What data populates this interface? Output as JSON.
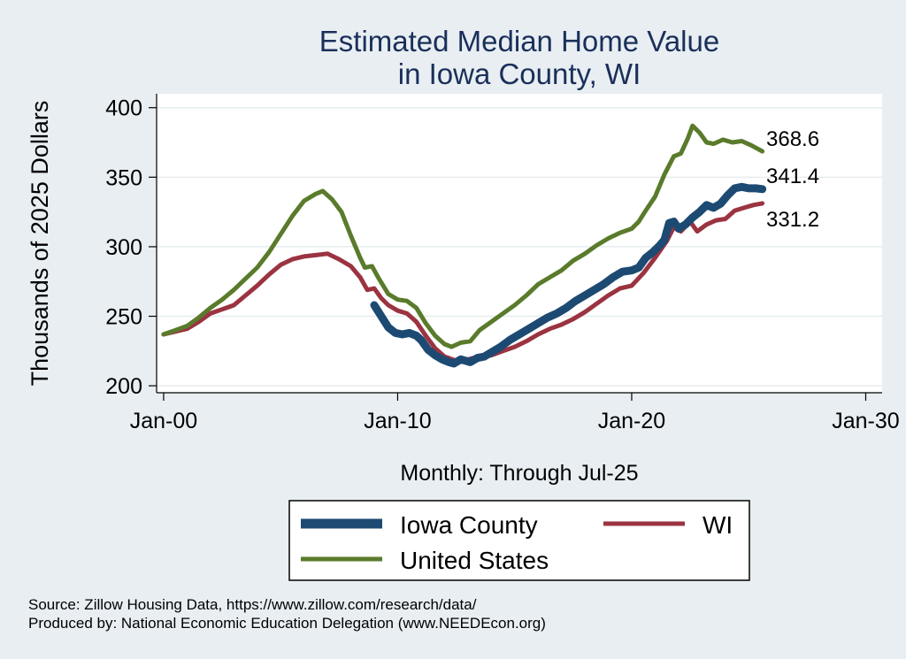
{
  "chart_data": {
    "type": "line",
    "title": "Estimated Median Home Value",
    "subtitle": "in Iowa County, WI",
    "ylabel": "Thousands of 2025 Dollars",
    "xlabel": "Monthly: Through Jul-25",
    "ylim": [
      195,
      410
    ],
    "xlim": [
      -0.3,
      30.7
    ],
    "yticks": [
      200,
      250,
      300,
      350,
      400
    ],
    "xticks": [
      {
        "value": 0,
        "label": "Jan-00"
      },
      {
        "value": 10,
        "label": "Jan-10"
      },
      {
        "value": 20,
        "label": "Jan-20"
      },
      {
        "value": 30,
        "label": "Jan-30"
      }
    ],
    "grid": true,
    "legend_position": "bottom",
    "series": [
      {
        "name": "Iowa County",
        "color": "#1d4a73",
        "end_label": "341.4",
        "points": [
          [
            9.0,
            258
          ],
          [
            9.3,
            250
          ],
          [
            9.6,
            242
          ],
          [
            9.9,
            238
          ],
          [
            10.2,
            237
          ],
          [
            10.5,
            238
          ],
          [
            10.8,
            236
          ],
          [
            11.0,
            233
          ],
          [
            11.3,
            226
          ],
          [
            11.6,
            222
          ],
          [
            11.9,
            219
          ],
          [
            12.2,
            217
          ],
          [
            12.4,
            216
          ],
          [
            12.7,
            219
          ],
          [
            12.9,
            218
          ],
          [
            13.1,
            217
          ],
          [
            13.4,
            220
          ],
          [
            13.7,
            221
          ],
          [
            14.0,
            224
          ],
          [
            14.4,
            228
          ],
          [
            14.8,
            233
          ],
          [
            15.2,
            237
          ],
          [
            15.6,
            241
          ],
          [
            16.0,
            245
          ],
          [
            16.4,
            249
          ],
          [
            16.8,
            252
          ],
          [
            17.2,
            256
          ],
          [
            17.6,
            261
          ],
          [
            18.0,
            265
          ],
          [
            18.4,
            269
          ],
          [
            18.8,
            273
          ],
          [
            19.2,
            278
          ],
          [
            19.6,
            282
          ],
          [
            20.0,
            283
          ],
          [
            20.3,
            285
          ],
          [
            20.6,
            292
          ],
          [
            20.9,
            296
          ],
          [
            21.2,
            301
          ],
          [
            21.4,
            305
          ],
          [
            21.6,
            317
          ],
          [
            21.8,
            318
          ],
          [
            22.0,
            313
          ],
          [
            22.3,
            316
          ],
          [
            22.6,
            321
          ],
          [
            22.9,
            325
          ],
          [
            23.2,
            330
          ],
          [
            23.5,
            328
          ],
          [
            23.8,
            331
          ],
          [
            24.1,
            337
          ],
          [
            24.4,
            342
          ],
          [
            24.7,
            343
          ],
          [
            25.0,
            342
          ],
          [
            25.3,
            342
          ],
          [
            25.58,
            341.4
          ]
        ]
      },
      {
        "name": "WI",
        "color": "#9b3340",
        "end_label": "331.2",
        "points": [
          [
            0,
            237
          ],
          [
            0.5,
            239
          ],
          [
            1.0,
            241
          ],
          [
            1.5,
            246
          ],
          [
            2.0,
            252
          ],
          [
            2.5,
            255
          ],
          [
            3.0,
            258
          ],
          [
            3.5,
            265
          ],
          [
            4.0,
            272
          ],
          [
            4.5,
            280
          ],
          [
            5.0,
            287
          ],
          [
            5.5,
            291
          ],
          [
            6.0,
            293
          ],
          [
            6.5,
            294
          ],
          [
            7.0,
            295
          ],
          [
            7.5,
            291
          ],
          [
            8.0,
            286
          ],
          [
            8.4,
            278
          ],
          [
            8.7,
            269
          ],
          [
            9.0,
            270
          ],
          [
            9.3,
            263
          ],
          [
            9.6,
            258
          ],
          [
            10.0,
            254
          ],
          [
            10.4,
            252
          ],
          [
            10.8,
            246
          ],
          [
            11.2,
            236
          ],
          [
            11.6,
            227
          ],
          [
            12.0,
            221
          ],
          [
            12.5,
            218
          ],
          [
            13.0,
            219
          ],
          [
            13.5,
            221
          ],
          [
            14.0,
            222
          ],
          [
            14.5,
            225
          ],
          [
            15.0,
            228
          ],
          [
            15.5,
            232
          ],
          [
            16.0,
            237
          ],
          [
            16.5,
            241
          ],
          [
            17.0,
            244
          ],
          [
            17.5,
            248
          ],
          [
            18.0,
            253
          ],
          [
            18.5,
            259
          ],
          [
            19.0,
            265
          ],
          [
            19.5,
            270
          ],
          [
            20.0,
            272
          ],
          [
            20.5,
            281
          ],
          [
            21.0,
            292
          ],
          [
            21.5,
            304
          ],
          [
            21.8,
            314
          ],
          [
            22.1,
            311
          ],
          [
            22.5,
            318
          ],
          [
            22.8,
            311
          ],
          [
            23.2,
            316
          ],
          [
            23.6,
            319
          ],
          [
            24.0,
            320
          ],
          [
            24.4,
            326
          ],
          [
            24.8,
            328
          ],
          [
            25.2,
            330
          ],
          [
            25.58,
            331.2
          ]
        ]
      },
      {
        "name": "United States",
        "color": "#5a7b2b",
        "end_label": "368.6",
        "points": [
          [
            0,
            237
          ],
          [
            0.5,
            240
          ],
          [
            1.0,
            243
          ],
          [
            1.5,
            249
          ],
          [
            2.0,
            256
          ],
          [
            2.5,
            262
          ],
          [
            3.0,
            269
          ],
          [
            3.5,
            277
          ],
          [
            4.0,
            285
          ],
          [
            4.5,
            296
          ],
          [
            5.0,
            309
          ],
          [
            5.5,
            322
          ],
          [
            6.0,
            333
          ],
          [
            6.5,
            338
          ],
          [
            6.8,
            340
          ],
          [
            7.2,
            334
          ],
          [
            7.6,
            325
          ],
          [
            8.0,
            308
          ],
          [
            8.4,
            292
          ],
          [
            8.6,
            285
          ],
          [
            8.9,
            286
          ],
          [
            9.2,
            277
          ],
          [
            9.6,
            266
          ],
          [
            10.0,
            262
          ],
          [
            10.4,
            261
          ],
          [
            10.8,
            256
          ],
          [
            11.2,
            245
          ],
          [
            11.6,
            236
          ],
          [
            12.0,
            230
          ],
          [
            12.3,
            228
          ],
          [
            12.7,
            231
          ],
          [
            13.1,
            232
          ],
          [
            13.5,
            240
          ],
          [
            14.0,
            246
          ],
          [
            14.5,
            252
          ],
          [
            15.0,
            258
          ],
          [
            15.5,
            265
          ],
          [
            16.0,
            273
          ],
          [
            16.5,
            278
          ],
          [
            17.0,
            283
          ],
          [
            17.5,
            290
          ],
          [
            18.0,
            295
          ],
          [
            18.5,
            301
          ],
          [
            19.0,
            306
          ],
          [
            19.5,
            310
          ],
          [
            20.0,
            313
          ],
          [
            20.3,
            318
          ],
          [
            20.6,
            326
          ],
          [
            21.0,
            336
          ],
          [
            21.4,
            352
          ],
          [
            21.8,
            365
          ],
          [
            22.1,
            367
          ],
          [
            22.4,
            378
          ],
          [
            22.6,
            387
          ],
          [
            22.9,
            382
          ],
          [
            23.2,
            375
          ],
          [
            23.5,
            374
          ],
          [
            23.9,
            377
          ],
          [
            24.3,
            375
          ],
          [
            24.7,
            376
          ],
          [
            25.1,
            373
          ],
          [
            25.58,
            368.6
          ]
        ]
      }
    ],
    "source": "Source: Zillow Housing Data, https://www.zillow.com/research/data/",
    "produced_by": "Produced by: National Economic Education Delegation (www.NEEDEcon.org)"
  }
}
